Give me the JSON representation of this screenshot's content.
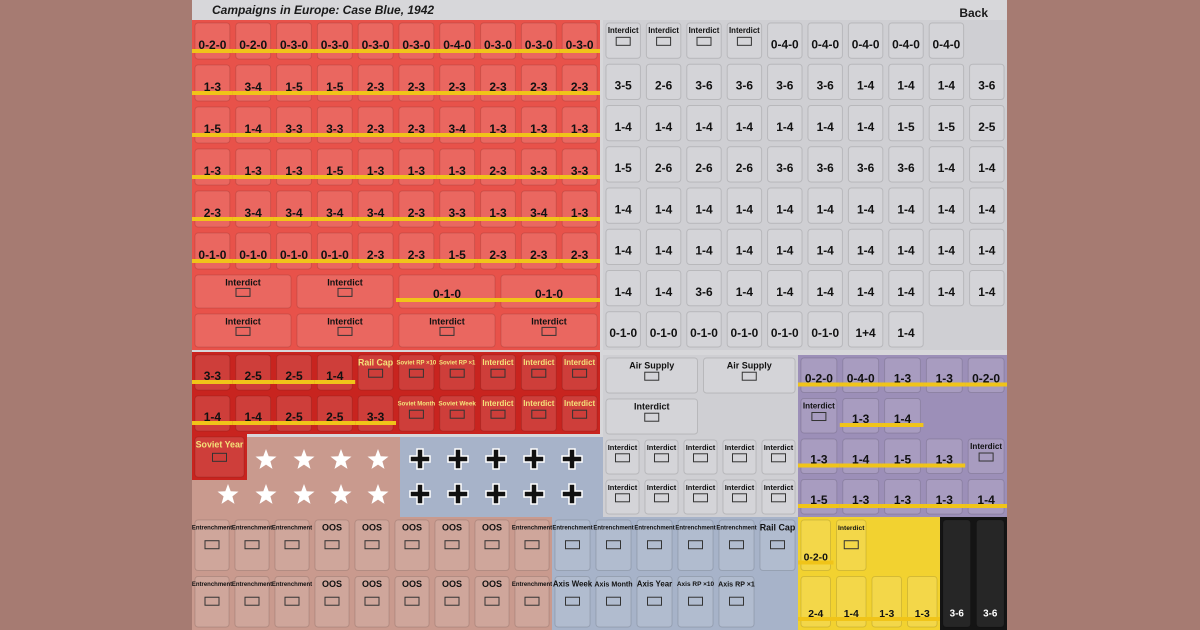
{
  "header": {
    "title": "Campaigns in Europe:  Case Blue, 1942",
    "back": "Back"
  },
  "sections": [
    {
      "color": "#e8524a",
      "rows": [
        [
          "0-2-0",
          "0-2-0",
          "0-3-0",
          "0-3-0",
          "0-3-0",
          "0-3-0",
          "0-4-0",
          "0-3-0",
          "0-3-0",
          "0-3-0"
        ],
        [
          "1-3",
          "3-4",
          "1-5",
          "1-5",
          "2-3",
          "2-3",
          "2-3",
          "2-3",
          "2-3",
          "2-3"
        ],
        [
          "1-5",
          "1-4",
          "3-3",
          "3-3",
          "2-3",
          "2-3",
          "3-4",
          "1-3",
          "1-3",
          "1-3"
        ],
        [
          "1-3",
          "1-3",
          "1-3",
          "1-5",
          "1-3",
          "1-3",
          "1-3",
          "2-3",
          "3-3",
          "3-3"
        ],
        [
          "2-3",
          "3-4",
          "3-4",
          "3-4",
          "3-4",
          "2-3",
          "3-3",
          "1-3",
          "3-4",
          "1-3"
        ],
        [
          "0-1-0",
          "0-1-0",
          "0-1-0",
          "0-1-0",
          "2-3",
          "2-3",
          "1-5",
          "2-3",
          "2-3",
          "2-3"
        ]
      ]
    },
    {
      "color": "#e8524a",
      "rows": [
        [
          "Interdict",
          "Interdict",
          "0-1-0",
          "0-1-0"
        ],
        [
          "Interdict",
          "Interdict",
          "Interdict",
          "Interdict"
        ]
      ]
    },
    {
      "color": "#c8241f",
      "rows": [
        [
          "3-3",
          "2-5",
          "2-5",
          "1-4",
          "Rail Cap",
          "Soviet RP ×10",
          "Soviet RP ×1",
          "Interdict",
          "Interdict",
          "Interdict"
        ],
        [
          "1-4",
          "1-4",
          "2-5",
          "2-5",
          "3-3",
          "Soviet Month",
          "Soviet Week",
          "Interdict",
          "Interdict",
          "Interdict"
        ]
      ]
    },
    {
      "color": "#c8241f",
      "rows": [
        [
          "Soviet Year"
        ]
      ]
    },
    {
      "color": "#cfcfd3",
      "rows": [
        [
          "Interdict",
          "Interdict",
          "Interdict",
          "Interdict",
          "0-4-0",
          "0-4-0",
          "0-4-0",
          "0-4-0",
          "0-4-0"
        ],
        [
          "3-5",
          "2-6",
          "3-6",
          "3-6",
          "3-6",
          "3-6",
          "1-4",
          "1-4",
          "1-4",
          "3-6"
        ],
        [
          "1-4",
          "1-4",
          "1-4",
          "1-4",
          "1-4",
          "1-4",
          "1-4",
          "1-5",
          "1-5",
          "2-5"
        ],
        [
          "1-5",
          "2-6",
          "2-6",
          "2-6",
          "3-6",
          "3-6",
          "3-6",
          "3-6",
          "1-4",
          "1-4"
        ],
        [
          "1-4",
          "1-4",
          "1-4",
          "1-4",
          "1-4",
          "1-4",
          "1-4",
          "1-4",
          "1-4",
          "1-4"
        ],
        [
          "1-4",
          "1-4",
          "1-4",
          "1-4",
          "1-4",
          "1-4",
          "1-4",
          "1-4",
          "1-4",
          "1-4"
        ],
        [
          "1-4",
          "1-4",
          "3-6",
          "1-4",
          "1-4",
          "1-4",
          "1-4",
          "1-4",
          "1-4",
          "1-4"
        ],
        [
          "0-1-0",
          "0-1-0",
          "0-1-0",
          "0-1-0",
          "0-1-0",
          "0-1-0",
          "1+4",
          "1-4"
        ]
      ]
    },
    {
      "color": "#cfcfd3",
      "rows": [
        [
          "Air Supply",
          "Air Supply"
        ],
        [
          "Interdict"
        ]
      ]
    },
    {
      "color": "#9c8fb8",
      "rows": [
        [
          "0-2-0",
          "0-4-0",
          "1-3",
          "1-3",
          "0-2-0"
        ],
        [
          "Interdict",
          "1-3",
          "1-4"
        ],
        [
          "1-3",
          "1-4",
          "1-5",
          "1-3",
          "Interdict"
        ],
        [
          "1-5",
          "1-3",
          "1-3",
          "1-3",
          "1-4"
        ]
      ]
    },
    {
      "color": "#a7b3c9",
      "rows": []
    },
    {
      "color": "#cfcfd3",
      "rows": [
        [
          "Interdict",
          "Interdict",
          "Interdict",
          "Interdict",
          "Interdict"
        ],
        [
          "Interdict",
          "Interdict",
          "Interdict",
          "Interdict",
          "Interdict"
        ]
      ]
    },
    {
      "color": "#c99a8e",
      "rows": [
        [
          "Entrenchment",
          "Entrenchment",
          "Entrenchment",
          "OOS",
          "OOS",
          "OOS",
          "OOS",
          "OOS",
          "Entrenchment"
        ],
        [
          "Entrenchment",
          "Entrenchment",
          "Entrenchment",
          "OOS",
          "OOS",
          "OOS",
          "OOS",
          "OOS",
          "Entrenchment"
        ]
      ]
    },
    {
      "color": "#a7b3c9",
      "rows": [
        [
          "Entrenchment",
          "Entrenchment",
          "Entrenchment",
          "Entrenchment",
          "Entrenchment",
          "Rail Cap"
        ],
        [
          "Axis Week",
          "Axis Month",
          "Axis Year",
          "Axis RP ×10",
          "Axis RP ×1"
        ]
      ]
    },
    {
      "color": "#f2d230",
      "rows": [
        [
          "0-2-0",
          "Interdict"
        ],
        [
          "2-4",
          "1-4",
          "1-3",
          "1-3"
        ]
      ]
    },
    {
      "color": "#141414",
      "rows": [
        [
          "3-6",
          "3-6"
        ]
      ]
    }
  ]
}
